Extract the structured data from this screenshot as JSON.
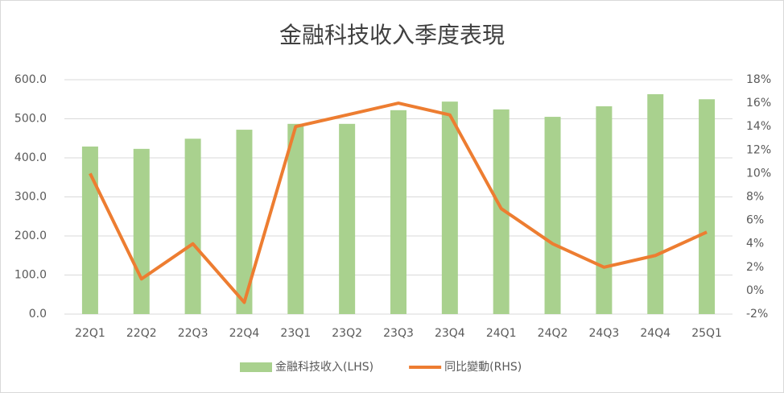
{
  "chart_data": {
    "type": "bar-line",
    "title": "金融科技收入季度表現",
    "categories": [
      "22Q1",
      "22Q2",
      "22Q3",
      "22Q4",
      "23Q1",
      "23Q2",
      "23Q3",
      "23Q4",
      "24Q1",
      "24Q2",
      "24Q3",
      "24Q4",
      "25Q1"
    ],
    "series": [
      {
        "name": "金融科技收入(LHS)",
        "type": "bar",
        "color": "#a9d18e",
        "values": [
          429,
          423,
          449,
          472,
          487,
          487,
          522,
          544,
          524,
          505,
          532,
          563,
          550
        ]
      },
      {
        "name": "同比變動(RHS)",
        "type": "line",
        "axis": "y2",
        "color": "#ed7d31",
        "values": [
          10,
          1,
          4,
          -1,
          14,
          15,
          16,
          15,
          7,
          4,
          2,
          3,
          5
        ]
      }
    ],
    "ylim": [
      0,
      600
    ],
    "yticks": [
      {
        "value": 0,
        "label": "0.0"
      },
      {
        "value": 100,
        "label": "100.0"
      },
      {
        "value": 200,
        "label": "200.0"
      },
      {
        "value": 300,
        "label": "300.0"
      },
      {
        "value": 400,
        "label": "400.0"
      },
      {
        "value": 500,
        "label": "500.0"
      },
      {
        "value": 600,
        "label": "600.0"
      }
    ],
    "y2lim": [
      -2,
      18
    ],
    "y2ticks": [
      {
        "value": -2,
        "label": "-2%"
      },
      {
        "value": 0,
        "label": "0%"
      },
      {
        "value": 2,
        "label": "2%"
      },
      {
        "value": 4,
        "label": "4%"
      },
      {
        "value": 6,
        "label": "6%"
      },
      {
        "value": 8,
        "label": "8%"
      },
      {
        "value": 10,
        "label": "10%"
      },
      {
        "value": 12,
        "label": "12%"
      },
      {
        "value": 14,
        "label": "14%"
      },
      {
        "value": 16,
        "label": "16%"
      },
      {
        "value": 18,
        "label": "18%"
      }
    ],
    "grid": true,
    "legend": "bottom"
  }
}
